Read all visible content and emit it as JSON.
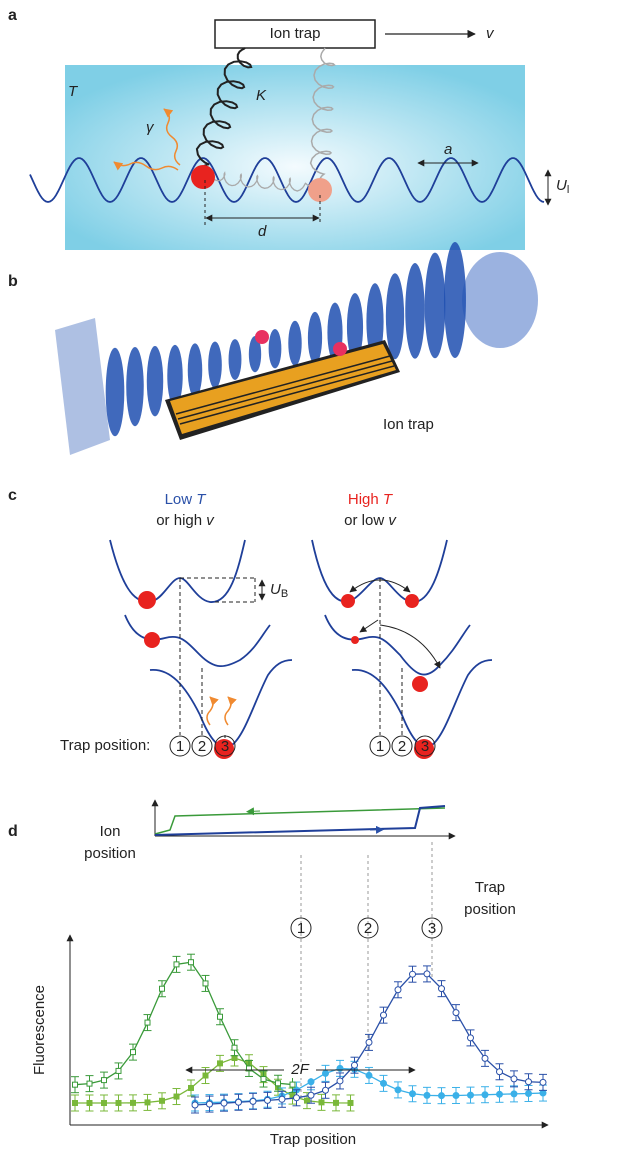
{
  "panel_a": {
    "label": "a",
    "trap": "Ion trap",
    "velocity": "v",
    "temperature": "T",
    "spring": "K",
    "damping": "γ",
    "lattice_spacing": "a",
    "lattice_depth": "U",
    "lattice_depth_sub": "l",
    "separation": "d"
  },
  "panel_b": {
    "label": "b",
    "trap": "Ion trap"
  },
  "panel_c": {
    "label": "c",
    "left_title_1": "Low ",
    "left_title_var_1": "T",
    "left_title_2": "or high ",
    "left_title_var_2": "v",
    "right_title_1": "High ",
    "right_title_var_1": "T",
    "right_title_2": "or low ",
    "right_title_var_2": "v",
    "barrier": "U",
    "barrier_sub": "B",
    "trap_position": "Trap position:",
    "positions": [
      "1",
      "2",
      "3"
    ]
  },
  "panel_d": {
    "label": "d",
    "upper_y_label_1": "Ion",
    "upper_y_label_2": "position",
    "upper_x_label_1": "Trap",
    "upper_x_label_2": "position",
    "positions": [
      "1",
      "2",
      "3"
    ],
    "lower_y_label": "Fluorescence",
    "friction_width": "2F",
    "lower_x_label": "Trap position"
  }
}
